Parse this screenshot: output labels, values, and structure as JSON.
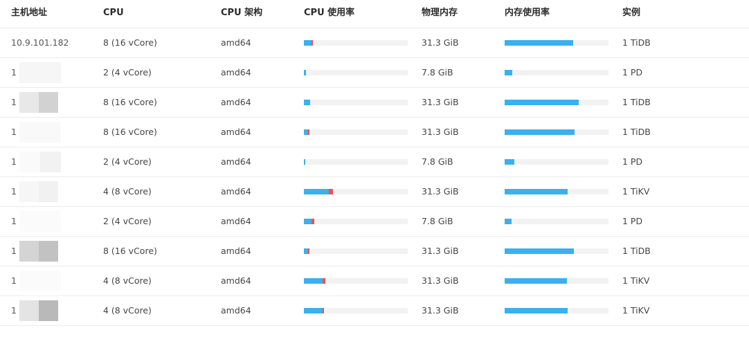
{
  "colors": {
    "bar_user": "#3ab0ee",
    "bar_system": "#f2504b",
    "bar_track": "#f2f2f2"
  },
  "headers": {
    "host": "主机地址",
    "cpu": "CPU",
    "arch": "CPU 架构",
    "cpu_usage": "CPU 使用率",
    "memory": "物理内存",
    "memory_usage": "内存使用率",
    "instances": "实例"
  },
  "rows": [
    {
      "host": "10.9.101.182",
      "cpu": "8 (16 vCore)",
      "arch": "amd64",
      "cpu_user": 0.07,
      "cpu_sys": 0.013,
      "memory": "31.3 GiB",
      "mem_usage": 0.66,
      "instances": "1 TiDB"
    },
    {
      "host": "1",
      "cpu": "2 (4 vCore)",
      "arch": "amd64",
      "cpu_user": 0.02,
      "cpu_sys": 0.0,
      "memory": "7.8 GiB",
      "mem_usage": 0.07,
      "instances": "1 PD"
    },
    {
      "host": "1",
      "cpu": "8 (16 vCore)",
      "arch": "amd64",
      "cpu_user": 0.06,
      "cpu_sys": 0.0,
      "memory": "31.3 GiB",
      "mem_usage": 0.713,
      "instances": "1 TiDB"
    },
    {
      "host": "1                2",
      "cpu": "8 (16 vCore)",
      "arch": "amd64",
      "cpu_user": 0.04,
      "cpu_sys": 0.013,
      "memory": "31.3 GiB",
      "mem_usage": 0.673,
      "instances": "1 TiDB"
    },
    {
      "host": "1                6",
      "cpu": "2 (4 vCore)",
      "arch": "amd64",
      "cpu_user": 0.013,
      "cpu_sys": 0.0,
      "memory": "7.8 GiB",
      "mem_usage": 0.093,
      "instances": "1 PD"
    },
    {
      "host": "1",
      "cpu": "4 (8 vCore)",
      "arch": "amd64",
      "cpu_user": 0.24,
      "cpu_sys": 0.04,
      "memory": "31.3 GiB",
      "mem_usage": 0.607,
      "instances": "1 TiKV"
    },
    {
      "host": "1",
      "cpu": "2 (4 vCore)",
      "arch": "amd64",
      "cpu_user": 0.073,
      "cpu_sys": 0.027,
      "memory": "7.8 GiB",
      "mem_usage": 0.067,
      "instances": "1 PD"
    },
    {
      "host": "1",
      "cpu": "8 (16 vCore)",
      "arch": "amd64",
      "cpu_user": 0.04,
      "cpu_sys": 0.013,
      "memory": "31.3 GiB",
      "mem_usage": 0.667,
      "instances": "1 TiDB"
    },
    {
      "host": "1",
      "cpu": "4 (8 vCore)",
      "arch": "amd64",
      "cpu_user": 0.18,
      "cpu_sys": 0.027,
      "memory": "31.3 GiB",
      "mem_usage": 0.6,
      "instances": "1 TiKV"
    },
    {
      "host": "1",
      "cpu": "4 (8 vCore)",
      "arch": "amd64",
      "cpu_user": 0.18,
      "cpu_sys": 0.013,
      "memory": "31.3 GiB",
      "mem_usage": 0.607,
      "instances": "1 TiKV"
    }
  ]
}
